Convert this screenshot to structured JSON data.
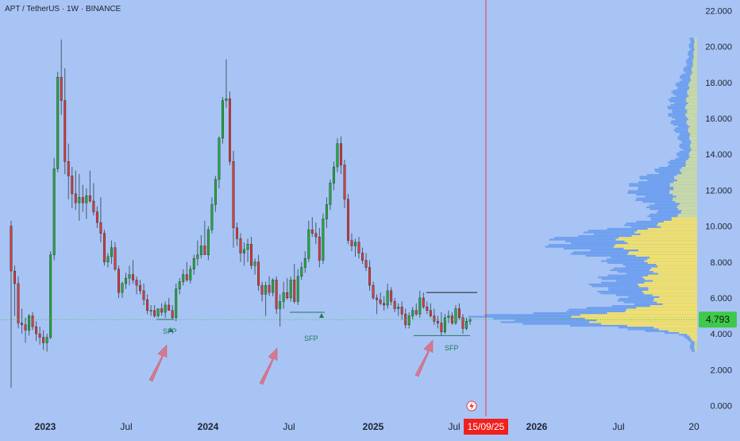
{
  "header": {
    "title": "APT / TetherUS · 1W · BINANCE"
  },
  "colors": {
    "background": "#a8c4f4",
    "up": "#1fae3a",
    "down": "#d83b3b",
    "vp_value_area": "#f1e06e",
    "vp_up": "#4a74e8",
    "vp_down": "#6fa0ef",
    "marker": "#e06b7d",
    "price_tag": "#3fc94a",
    "date_tag": "#f0201d"
  },
  "icons": {
    "lightning": "lightning-icon"
  },
  "chart_data": {
    "type": "candlestick",
    "title": "APT / TetherUS · 1W · BINANCE",
    "y_ticks": [
      "22.000",
      "20.000",
      "18.000",
      "16.000",
      "14.000",
      "12.000",
      "10.000",
      "8.000",
      "6.000",
      "4.000",
      "2.000",
      "0.000"
    ],
    "ylim": [
      -0.6,
      22.6
    ],
    "x_ticks": [
      "2023",
      "Jul",
      "2024",
      "Jul",
      "2025",
      "Jul",
      "2026",
      "Jul",
      "20"
    ],
    "current_price": "4.793",
    "cursor_date": "15/09/25",
    "annotations": [
      "SFP",
      "SFP",
      "SFP"
    ],
    "candles": [
      [
        10.0,
        10.3,
        1.0,
        7.5
      ],
      [
        7.5,
        7.8,
        5.0,
        6.8
      ],
      [
        6.8,
        7.2,
        4.3,
        4.6
      ],
      [
        4.6,
        5.4,
        4.0,
        4.5
      ],
      [
        4.5,
        4.9,
        3.5,
        4.2
      ],
      [
        4.2,
        5.1,
        3.9,
        5.0
      ],
      [
        5.0,
        5.2,
        4.2,
        4.4
      ],
      [
        4.4,
        4.7,
        3.6,
        4.0
      ],
      [
        4.0,
        4.4,
        3.4,
        3.8
      ],
      [
        3.8,
        4.2,
        3.1,
        3.5
      ],
      [
        3.5,
        4.0,
        3.0,
        3.8
      ],
      [
        3.8,
        8.6,
        3.7,
        8.4
      ],
      [
        8.4,
        13.8,
        8.1,
        13.2
      ],
      [
        13.2,
        18.6,
        13.0,
        18.3
      ],
      [
        18.3,
        20.4,
        16.2,
        17.0
      ],
      [
        17.0,
        18.8,
        12.9,
        13.6
      ],
      [
        13.6,
        14.6,
        11.5,
        12.8
      ],
      [
        12.8,
        13.3,
        11.0,
        11.8
      ],
      [
        11.8,
        13.1,
        10.9,
        11.3
      ],
      [
        11.3,
        12.9,
        10.3,
        11.6
      ],
      [
        11.6,
        12.3,
        10.8,
        11.3
      ],
      [
        11.3,
        12.1,
        10.4,
        11.7
      ],
      [
        11.7,
        13.1,
        11.3,
        11.4
      ],
      [
        11.4,
        12.4,
        10.6,
        10.8
      ],
      [
        10.8,
        11.1,
        9.9,
        10.2
      ],
      [
        10.2,
        11.6,
        9.1,
        9.6
      ],
      [
        9.6,
        9.8,
        7.8,
        8.0
      ],
      [
        8.0,
        8.5,
        7.7,
        8.3
      ],
      [
        8.3,
        9.2,
        7.9,
        8.8
      ],
      [
        8.8,
        9.1,
        7.5,
        7.6
      ],
      [
        7.6,
        7.8,
        6.0,
        6.3
      ],
      [
        6.3,
        6.9,
        6.0,
        6.8
      ],
      [
        6.8,
        7.4,
        6.5,
        7.1
      ],
      [
        7.1,
        7.8,
        6.7,
        7.3
      ],
      [
        7.3,
        8.1,
        6.8,
        7.0
      ],
      [
        7.0,
        7.2,
        6.2,
        6.7
      ],
      [
        6.7,
        7.0,
        6.2,
        6.4
      ],
      [
        6.4,
        6.8,
        5.6,
        5.9
      ],
      [
        5.9,
        6.2,
        5.1,
        5.3
      ],
      [
        5.3,
        5.6,
        5.0,
        5.3
      ],
      [
        5.3,
        5.6,
        4.9,
        5.0
      ],
      [
        5.0,
        5.4,
        4.9,
        5.4
      ],
      [
        5.4,
        5.7,
        5.0,
        5.2
      ],
      [
        5.2,
        5.8,
        4.9,
        5.6
      ],
      [
        5.6,
        6.0,
        5.3,
        5.3
      ],
      [
        5.3,
        5.6,
        4.8,
        4.9
      ],
      [
        4.9,
        6.8,
        4.7,
        6.5
      ],
      [
        6.5,
        7.1,
        6.2,
        6.9
      ],
      [
        6.9,
        7.6,
        6.7,
        7.3
      ],
      [
        7.3,
        8.0,
        6.9,
        7.0
      ],
      [
        7.0,
        7.8,
        6.8,
        7.6
      ],
      [
        7.6,
        8.4,
        7.3,
        8.2
      ],
      [
        8.2,
        9.2,
        7.8,
        8.4
      ],
      [
        8.4,
        9.5,
        8.2,
        8.9
      ],
      [
        8.9,
        10.3,
        8.6,
        8.4
      ],
      [
        8.4,
        10.0,
        8.1,
        9.8
      ],
      [
        9.8,
        11.6,
        9.6,
        11.2
      ],
      [
        11.2,
        12.8,
        10.8,
        12.6
      ],
      [
        12.6,
        15.0,
        12.1,
        14.9
      ],
      [
        14.9,
        17.2,
        14.6,
        17.0
      ],
      [
        17.0,
        19.3,
        16.6,
        17.1
      ],
      [
        17.1,
        17.5,
        13.4,
        13.6
      ],
      [
        13.6,
        14.2,
        8.8,
        9.9
      ],
      [
        9.9,
        10.2,
        8.9,
        9.3
      ],
      [
        9.3,
        9.6,
        8.0,
        8.5
      ],
      [
        8.5,
        9.1,
        7.8,
        8.7
      ],
      [
        8.7,
        9.3,
        8.0,
        9.0
      ],
      [
        9.0,
        9.4,
        7.6,
        7.8
      ],
      [
        7.8,
        8.2,
        7.3,
        8.0
      ],
      [
        8.0,
        8.4,
        6.4,
        6.7
      ],
      [
        6.7,
        6.9,
        5.8,
        6.2
      ],
      [
        6.2,
        6.9,
        5.0,
        6.7
      ],
      [
        6.7,
        7.2,
        6.1,
        6.3
      ],
      [
        6.3,
        7.1,
        6.1,
        7.0
      ],
      [
        7.0,
        7.2,
        5.1,
        5.4
      ],
      [
        5.4,
        6.2,
        4.4,
        5.8
      ],
      [
        5.8,
        6.9,
        5.4,
        6.3
      ],
      [
        6.3,
        7.1,
        5.9,
        6.0
      ],
      [
        6.0,
        7.2,
        5.8,
        7.0
      ],
      [
        7.0,
        7.9,
        5.7,
        5.8
      ],
      [
        5.8,
        7.6,
        5.6,
        7.2
      ],
      [
        7.2,
        8.0,
        7.0,
        7.7
      ],
      [
        7.7,
        8.6,
        7.4,
        8.2
      ],
      [
        8.2,
        10.3,
        8.0,
        9.8
      ],
      [
        9.8,
        10.5,
        9.4,
        9.6
      ],
      [
        9.6,
        10.2,
        9.0,
        9.4
      ],
      [
        9.4,
        9.9,
        7.7,
        8.1
      ],
      [
        8.1,
        10.7,
        7.9,
        10.4
      ],
      [
        10.4,
        11.6,
        9.9,
        11.2
      ],
      [
        11.2,
        12.6,
        10.9,
        12.4
      ],
      [
        12.4,
        13.6,
        12.0,
        13.3
      ],
      [
        13.3,
        14.9,
        13.0,
        14.6
      ],
      [
        14.6,
        15.0,
        12.9,
        13.4
      ],
      [
        13.4,
        13.7,
        11.0,
        11.5
      ],
      [
        11.5,
        11.8,
        9.0,
        9.2
      ],
      [
        9.2,
        9.6,
        8.6,
        8.9
      ],
      [
        8.9,
        9.3,
        8.3,
        9.1
      ],
      [
        9.1,
        9.4,
        8.2,
        8.5
      ],
      [
        8.5,
        8.8,
        7.9,
        8.1
      ],
      [
        8.1,
        8.5,
        7.5,
        7.7
      ],
      [
        7.7,
        8.1,
        6.4,
        6.7
      ],
      [
        6.7,
        6.9,
        5.9,
        6.0
      ],
      [
        6.0,
        6.2,
        5.1,
        5.9
      ],
      [
        5.9,
        6.3,
        5.6,
        5.7
      ],
      [
        5.7,
        6.1,
        5.3,
        5.6
      ],
      [
        5.6,
        6.8,
        5.4,
        6.4
      ],
      [
        6.4,
        6.6,
        5.6,
        5.8
      ],
      [
        5.8,
        6.0,
        5.2,
        5.4
      ],
      [
        5.4,
        5.7,
        5.0,
        5.5
      ],
      [
        5.5,
        5.8,
        4.8,
        5.1
      ],
      [
        5.1,
        5.4,
        4.3,
        4.5
      ],
      [
        4.5,
        5.2,
        4.3,
        5.0
      ],
      [
        5.0,
        5.5,
        4.8,
        5.3
      ],
      [
        5.3,
        5.7,
        5.0,
        5.1
      ],
      [
        5.1,
        6.4,
        4.9,
        6.0
      ],
      [
        6.0,
        6.3,
        5.4,
        5.5
      ],
      [
        5.5,
        5.8,
        5.1,
        5.3
      ],
      [
        5.3,
        5.7,
        4.9,
        5.0
      ],
      [
        5.0,
        5.4,
        4.5,
        4.7
      ],
      [
        4.7,
        5.0,
        4.3,
        4.6
      ],
      [
        4.6,
        5.2,
        3.9,
        4.1
      ],
      [
        4.1,
        5.1,
        4.0,
        4.9
      ],
      [
        4.9,
        5.3,
        4.6,
        5.0
      ],
      [
        5.0,
        5.2,
        4.5,
        4.6
      ],
      [
        4.6,
        5.6,
        4.5,
        5.4
      ],
      [
        5.4,
        5.7,
        4.8,
        4.9
      ],
      [
        4.9,
        5.1,
        4.0,
        4.3
      ],
      [
        4.3,
        4.9,
        4.2,
        4.7
      ],
      [
        4.7,
        4.9,
        4.5,
        4.8
      ]
    ]
  }
}
